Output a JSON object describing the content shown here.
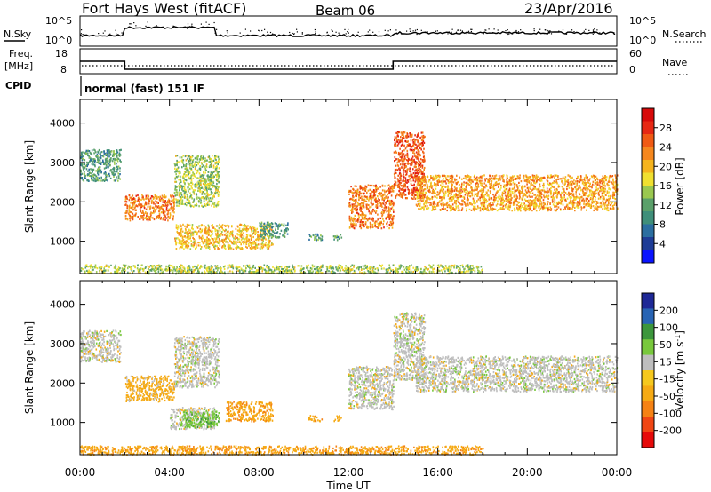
{
  "header": {
    "title": "Fort Hays West (fitACF)",
    "beam": "Beam 06",
    "date": "23/Apr/2016"
  },
  "noise_panel": {
    "left_label": "N.Sky",
    "right_label": "N.Search",
    "left_ticks": [
      "10^5",
      "10^0"
    ],
    "right_ticks": [
      "10^5",
      "10^0"
    ]
  },
  "freq_panel": {
    "left_label_line1": "Freq.",
    "left_label_line2": "[MHz]",
    "right_label": "Nave",
    "left_ticks": [
      "18",
      "8"
    ],
    "right_ticks": [
      "60",
      "0"
    ],
    "freq_steps": [
      {
        "start_hour": 0,
        "end_hour": 2,
        "freq_mhz": 15
      },
      {
        "start_hour": 2,
        "end_hour": 14,
        "freq_mhz": 10.5
      },
      {
        "start_hour": 14,
        "end_hour": 24,
        "freq_mhz": 15
      }
    ]
  },
  "cpid": {
    "label": "CPID",
    "text": "normal (fast) 151 IF"
  },
  "x_axis": {
    "label": "Time UT",
    "ticks": [
      "00:00",
      "04:00",
      "08:00",
      "12:00",
      "16:00",
      "20:00",
      "00:00"
    ]
  },
  "colorbars": {
    "power": {
      "label": "Power [dB]",
      "ticks": [
        "28",
        "24",
        "20",
        "16",
        "12",
        "8",
        "4"
      ],
      "colors": [
        "#0a14ff",
        "#1e3c96",
        "#2b6ea0",
        "#3f8f7a",
        "#5aa06a",
        "#9ac850",
        "#f0e030",
        "#f5b41e",
        "#f5871e",
        "#f05a14",
        "#e62814",
        "#d70a0a"
      ]
    },
    "velocity": {
      "label": "Velocity [m s^-1]",
      "ticks": [
        "200",
        "100",
        "50",
        "15",
        "-15",
        "-50",
        "-100",
        "-200"
      ],
      "colors": [
        "#e60a0a",
        "#f04614",
        "#f58214",
        "#f5aa14",
        "#f5c81e",
        "#bebebe",
        "#78c83c",
        "#3c963c",
        "#2864b4",
        "#1e2896"
      ]
    }
  },
  "chart_data": [
    {
      "type": "heatmap",
      "panel": "power",
      "xlabel": "Time UT",
      "ylabel": "Slant Range [km]",
      "xlim_hours": [
        0,
        24
      ],
      "ylim": [
        180,
        4600
      ],
      "yticks": [
        1000,
        2000,
        3000,
        4000
      ],
      "xticks_hours": [
        0,
        4,
        8,
        12,
        16,
        20,
        24
      ],
      "zlim": [
        0,
        30
      ],
      "regions": [
        {
          "t0": 0.0,
          "t1": 1.8,
          "r0": 2550,
          "r1": 3350,
          "value": 10
        },
        {
          "t0": 2.0,
          "t1": 4.2,
          "r0": 1550,
          "r1": 2200,
          "value": 22
        },
        {
          "t0": 4.2,
          "t1": 6.2,
          "r0": 1900,
          "r1": 3200,
          "value": 14
        },
        {
          "t0": 4.2,
          "t1": 8.6,
          "r0": 820,
          "r1": 1450,
          "value": 18
        },
        {
          "t0": 8.0,
          "t1": 9.3,
          "r0": 1100,
          "r1": 1500,
          "value": 10
        },
        {
          "t0": 10.2,
          "t1": 10.8,
          "r0": 1050,
          "r1": 1200,
          "value": 10
        },
        {
          "t0": 11.3,
          "t1": 11.7,
          "r0": 1050,
          "r1": 1200,
          "value": 10
        },
        {
          "t0": 12.0,
          "t1": 14.0,
          "r0": 1350,
          "r1": 2450,
          "value": 22
        },
        {
          "t0": 14.0,
          "t1": 15.4,
          "r0": 2100,
          "r1": 3800,
          "value": 24
        },
        {
          "t0": 15.0,
          "t1": 24.0,
          "r0": 1800,
          "r1": 2700,
          "value": 20
        },
        {
          "t0": 0.0,
          "t1": 18.0,
          "r0": 200,
          "r1": 420,
          "value": 14
        }
      ]
    },
    {
      "type": "heatmap",
      "panel": "velocity",
      "xlabel": "Time UT",
      "ylabel": "Slant Range [km]",
      "xlim_hours": [
        0,
        24
      ],
      "ylim": [
        180,
        4600
      ],
      "yticks": [
        1000,
        2000,
        3000,
        4000
      ],
      "xticks_hours": [
        0,
        4,
        8,
        12,
        16,
        20,
        24
      ],
      "zlim": [
        -250,
        250
      ],
      "regions": [
        {
          "t0": 0.0,
          "t1": 1.8,
          "r0": 2550,
          "r1": 3350,
          "value": 0
        },
        {
          "t0": 2.0,
          "t1": 4.2,
          "r0": 1550,
          "r1": 2200,
          "value": -30
        },
        {
          "t0": 4.2,
          "t1": 6.2,
          "r0": 1900,
          "r1": 3200,
          "value": 0
        },
        {
          "t0": 4.0,
          "t1": 6.0,
          "r0": 850,
          "r1": 1400,
          "value": 0
        },
        {
          "t0": 4.6,
          "t1": 6.2,
          "r0": 900,
          "r1": 1300,
          "value": 40
        },
        {
          "t0": 6.5,
          "t1": 8.6,
          "r0": 1050,
          "r1": 1550,
          "value": -40
        },
        {
          "t0": 10.2,
          "t1": 10.8,
          "r0": 1050,
          "r1": 1200,
          "value": -40
        },
        {
          "t0": 11.3,
          "t1": 11.7,
          "r0": 1050,
          "r1": 1200,
          "value": -40
        },
        {
          "t0": 12.0,
          "t1": 14.0,
          "r0": 1350,
          "r1": 2450,
          "value": 0
        },
        {
          "t0": 14.0,
          "t1": 15.4,
          "r0": 2100,
          "r1": 3800,
          "value": 0
        },
        {
          "t0": 15.0,
          "t1": 24.0,
          "r0": 1800,
          "r1": 2700,
          "value": 0
        },
        {
          "t0": 0.0,
          "t1": 18.0,
          "r0": 200,
          "r1": 420,
          "value": -40
        }
      ]
    }
  ]
}
